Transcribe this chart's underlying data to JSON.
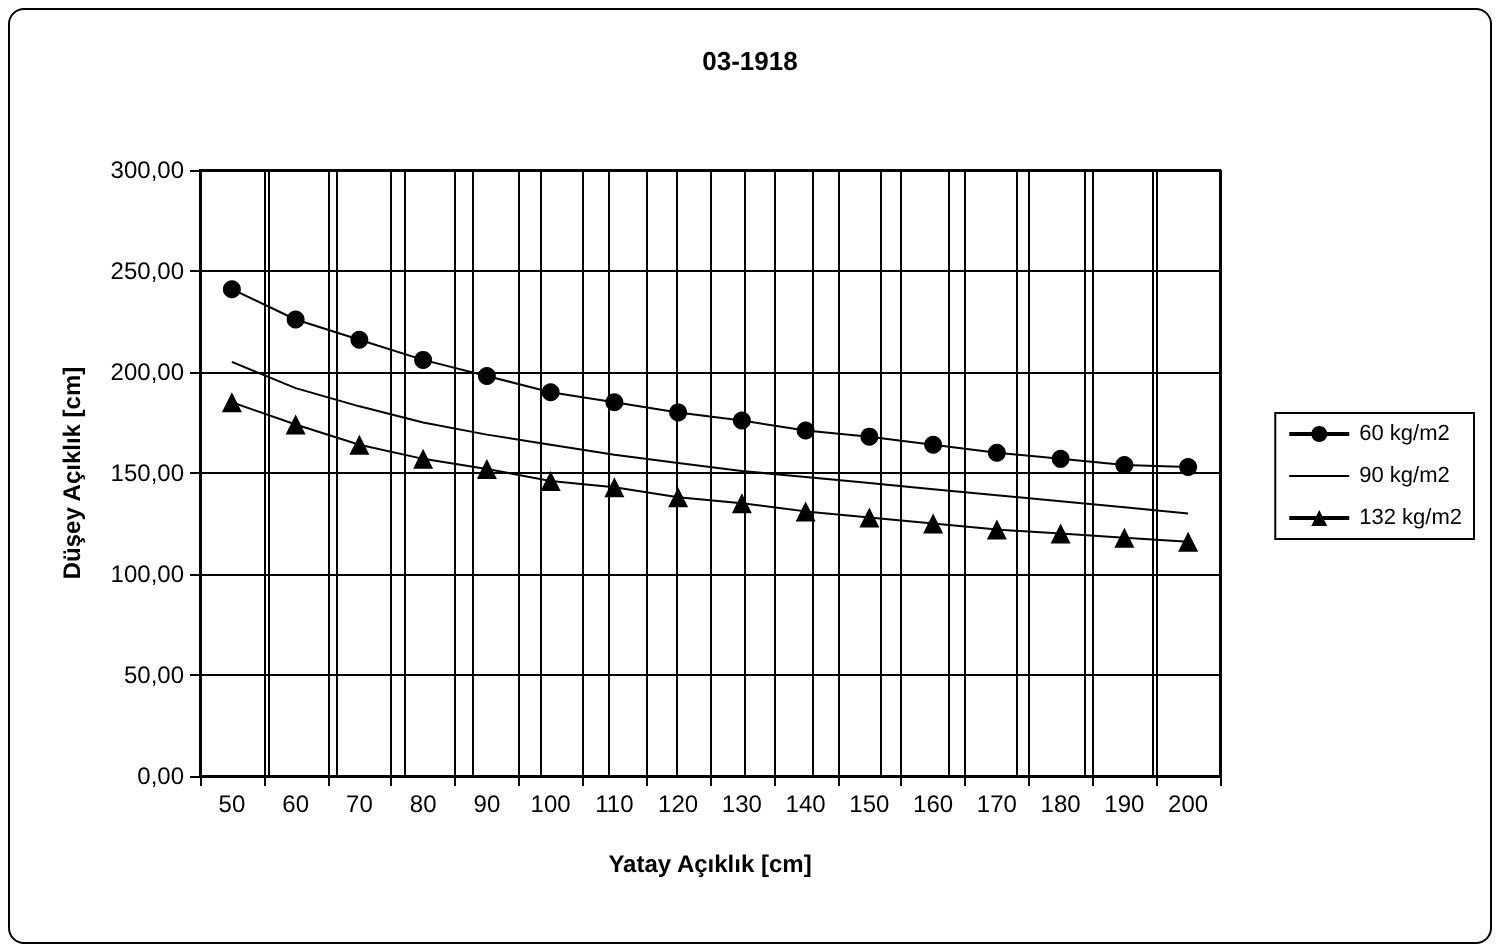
{
  "chart_data": {
    "type": "line",
    "title": "03-1918",
    "xlabel": "Yatay Açıklık [cm]",
    "ylabel": "Düşey Açıklık [cm]",
    "categories": [
      "50",
      "60",
      "70",
      "80",
      "90",
      "100",
      "110",
      "120",
      "130",
      "140",
      "150",
      "160",
      "170",
      "180",
      "190",
      "200"
    ],
    "series": [
      {
        "name": "60 kg/m2",
        "color": "#000000",
        "marker": "circle",
        "values": [
          241,
          226,
          216,
          206,
          198,
          190,
          185,
          180,
          176,
          171,
          168,
          164,
          160,
          157,
          154,
          153
        ]
      },
      {
        "name": "90 kg/m2",
        "color": "#000000",
        "marker": "none",
        "values": [
          205,
          192,
          183,
          175,
          169,
          164,
          159,
          155,
          151,
          148,
          145,
          142,
          139,
          136,
          133,
          130
        ]
      },
      {
        "name": "132 kg/m2",
        "color": "#000000",
        "marker": "triangle",
        "values": [
          185,
          174,
          164,
          157,
          152,
          146,
          143,
          138,
          135,
          131,
          128,
          125,
          122,
          120,
          118,
          116
        ]
      }
    ],
    "ylim": [
      0,
      300
    ],
    "yticks": [
      {
        "value": 0,
        "label": "0,00"
      },
      {
        "value": 50,
        "label": "50,00"
      },
      {
        "value": 100,
        "label": "100,00"
      },
      {
        "value": 150,
        "label": "150,00"
      },
      {
        "value": 200,
        "label": "200,00"
      },
      {
        "value": 250,
        "label": "250,00"
      },
      {
        "value": 300,
        "label": "300,00"
      }
    ],
    "grid": true,
    "legend": "right",
    "line_style": "solid"
  }
}
